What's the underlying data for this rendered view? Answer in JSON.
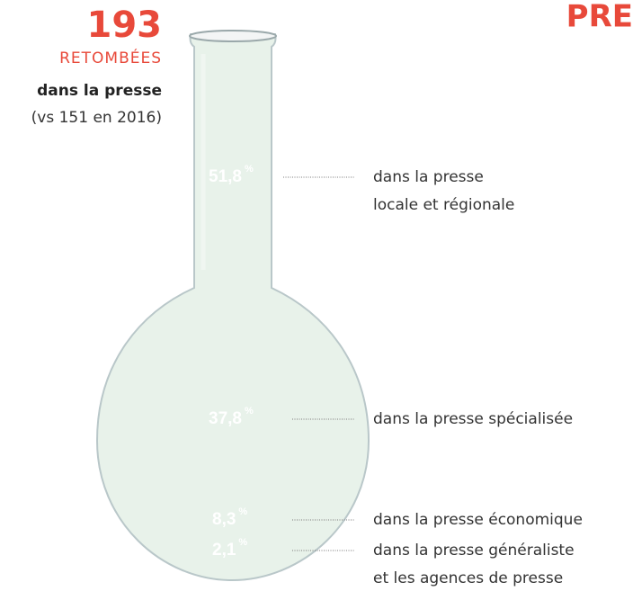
{
  "header": {
    "title": "PRE",
    "count": "193",
    "count_label": "RETOMBÉES",
    "subtitle": "dans la presse",
    "comparison": "(vs 151 en 2016)"
  },
  "segments": [
    {
      "value": "51,8",
      "unit": "%",
      "label": [
        "dans la presse",
        "locale et régionale"
      ]
    },
    {
      "value": "37,8",
      "unit": "%",
      "label": [
        "dans la presse spécialisée"
      ]
    },
    {
      "value": "8,3",
      "unit": "%",
      "label": [
        "dans la presse économique"
      ]
    },
    {
      "value": "2,1",
      "unit": "%",
      "label": [
        "dans la presse généraliste",
        "et les agences de presse"
      ]
    }
  ]
}
